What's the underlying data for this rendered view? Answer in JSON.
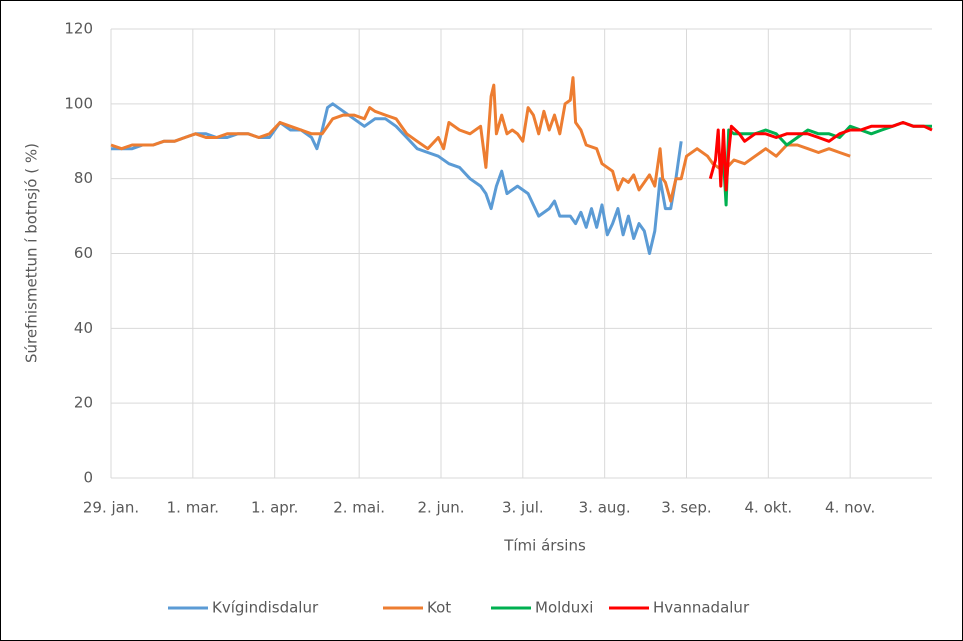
{
  "chart_data": {
    "type": "line",
    "y_label": "Súrefnismettun í botnsjó ( %)",
    "x_label": "Tími ársins",
    "xlim": [
      0,
      311
    ],
    "xticks": [
      {
        "value": 0,
        "label": "29. jan."
      },
      {
        "value": 31,
        "label": "1. mar."
      },
      {
        "value": 62,
        "label": "1. apr."
      },
      {
        "value": 94,
        "label": "2. mai."
      },
      {
        "value": 125,
        "label": "2. jun."
      },
      {
        "value": 156,
        "label": "3. jul."
      },
      {
        "value": 187,
        "label": "3. aug."
      },
      {
        "value": 218,
        "label": "3. sep."
      },
      {
        "value": 249,
        "label": "4. okt."
      },
      {
        "value": 280,
        "label": "4. nov."
      }
    ],
    "ylim": [
      0,
      120
    ],
    "yticks": [
      0,
      20,
      40,
      60,
      80,
      100,
      120
    ],
    "grid": true,
    "legend": "bottom",
    "series": [
      {
        "name": "Kvígindisdalur",
        "color": "#5b9bd5",
        "x": [
          0,
          4,
          8,
          12,
          16,
          20,
          24,
          28,
          32,
          36,
          40,
          44,
          48,
          52,
          56,
          60,
          64,
          68,
          72,
          76,
          78,
          80,
          82,
          84,
          88,
          92,
          96,
          100,
          104,
          108,
          112,
          116,
          120,
          124,
          128,
          132,
          136,
          140,
          142,
          144,
          146,
          148,
          150,
          154,
          158,
          160,
          162,
          166,
          168,
          170,
          174,
          176,
          178,
          180,
          182,
          184,
          186,
          188,
          190,
          192,
          194,
          196,
          198,
          200,
          202,
          204,
          206,
          208,
          210,
          212,
          214,
          216
        ],
        "values": [
          88,
          88,
          88,
          89,
          89,
          90,
          90,
          91,
          92,
          92,
          91,
          91,
          92,
          92,
          91,
          91,
          95,
          93,
          93,
          91,
          88,
          93,
          99,
          100,
          98,
          96,
          94,
          96,
          96,
          94,
          91,
          88,
          87,
          86,
          84,
          83,
          80,
          78,
          76,
          72,
          78,
          82,
          76,
          78,
          76,
          73,
          70,
          72,
          74,
          70,
          70,
          68,
          71,
          67,
          72,
          67,
          73,
          65,
          68,
          72,
          65,
          70,
          64,
          68,
          66,
          60,
          66,
          80,
          72,
          72,
          80,
          90
        ]
      },
      {
        "name": "Kot",
        "color": "#ed7d31",
        "x": [
          0,
          4,
          8,
          12,
          16,
          20,
          24,
          28,
          32,
          36,
          40,
          44,
          48,
          52,
          56,
          60,
          64,
          68,
          72,
          76,
          80,
          84,
          88,
          92,
          96,
          98,
          100,
          104,
          108,
          112,
          116,
          120,
          124,
          126,
          128,
          132,
          136,
          140,
          142,
          144,
          145,
          146,
          148,
          150,
          152,
          154,
          156,
          158,
          160,
          162,
          164,
          166,
          168,
          170,
          172,
          174,
          175,
          176,
          178,
          180,
          184,
          186,
          190,
          192,
          194,
          196,
          198,
          200,
          202,
          204,
          206,
          208,
          209,
          210,
          212,
          214,
          216,
          218,
          222,
          226,
          228,
          232,
          236,
          240,
          244,
          248,
          252,
          256,
          260,
          264,
          268,
          272,
          276,
          280
        ],
        "values": [
          89,
          88,
          89,
          89,
          89,
          90,
          90,
          91,
          92,
          91,
          91,
          92,
          92,
          92,
          91,
          92,
          95,
          94,
          93,
          92,
          92,
          96,
          97,
          97,
          96,
          99,
          98,
          97,
          96,
          92,
          90,
          88,
          91,
          88,
          95,
          93,
          92,
          94,
          83,
          102,
          105,
          92,
          97,
          92,
          93,
          92,
          90,
          99,
          97,
          92,
          98,
          93,
          97,
          92,
          100,
          101,
          107,
          95,
          93,
          89,
          88,
          84,
          82,
          77,
          80,
          79,
          81,
          77,
          79,
          81,
          78,
          88,
          80,
          79,
          74,
          80,
          80,
          86,
          88,
          86,
          84,
          82,
          85,
          84,
          86,
          88,
          86,
          89,
          89,
          88,
          87,
          88,
          87,
          86
        ]
      },
      {
        "name": "Molduxi",
        "color": "#00b050",
        "x": [
          232,
          233,
          234,
          236,
          240,
          244,
          248,
          252,
          256,
          260,
          264,
          268,
          272,
          276,
          280,
          284,
          288,
          292,
          296,
          300,
          304,
          308,
          311
        ],
        "values": [
          85,
          73,
          93,
          92,
          92,
          92,
          93,
          92,
          89,
          91,
          93,
          92,
          92,
          91,
          94,
          93,
          92,
          93,
          94,
          95,
          94,
          94,
          94
        ]
      },
      {
        "name": "Hvannadalur",
        "color": "#ff0000",
        "x": [
          227,
          229,
          230,
          231,
          232,
          233,
          234,
          235,
          238,
          240,
          244,
          248,
          252,
          256,
          260,
          264,
          268,
          272,
          276,
          280,
          284,
          288,
          292,
          296,
          300,
          304,
          308,
          311
        ],
        "values": [
          80,
          85,
          93,
          78,
          93,
          77,
          87,
          94,
          92,
          90,
          92,
          92,
          91,
          92,
          92,
          92,
          91,
          90,
          92,
          93,
          93,
          94,
          94,
          94,
          95,
          94,
          94,
          93
        ]
      }
    ]
  }
}
